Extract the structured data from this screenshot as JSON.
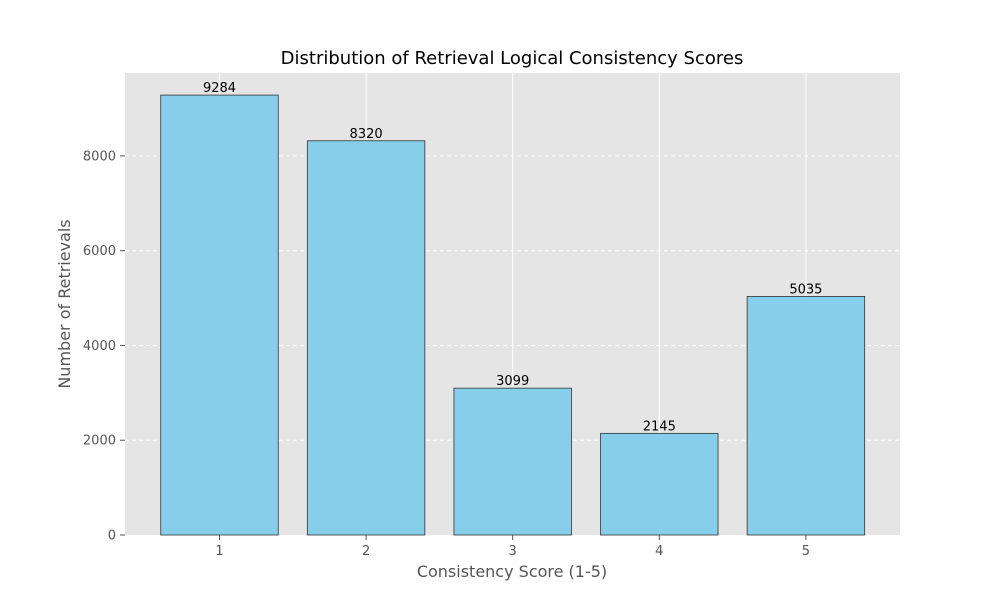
{
  "chart_data": {
    "type": "bar",
    "title": "Distribution of Retrieval Logical Consistency Scores",
    "xlabel": "Consistency Score (1-5)",
    "ylabel": "Number of Retrievals",
    "categories": [
      "1",
      "2",
      "3",
      "4",
      "5"
    ],
    "values": [
      9284,
      8320,
      3099,
      2145,
      5035
    ],
    "ylim": [
      0,
      9750
    ],
    "yticks": [
      0,
      2000,
      4000,
      6000,
      8000
    ],
    "grid": true,
    "colors": {
      "bar": "#87ceeb",
      "bar_edge": "#333333",
      "plot_bg": "#e5e5e5",
      "grid": "#ffffff"
    }
  }
}
